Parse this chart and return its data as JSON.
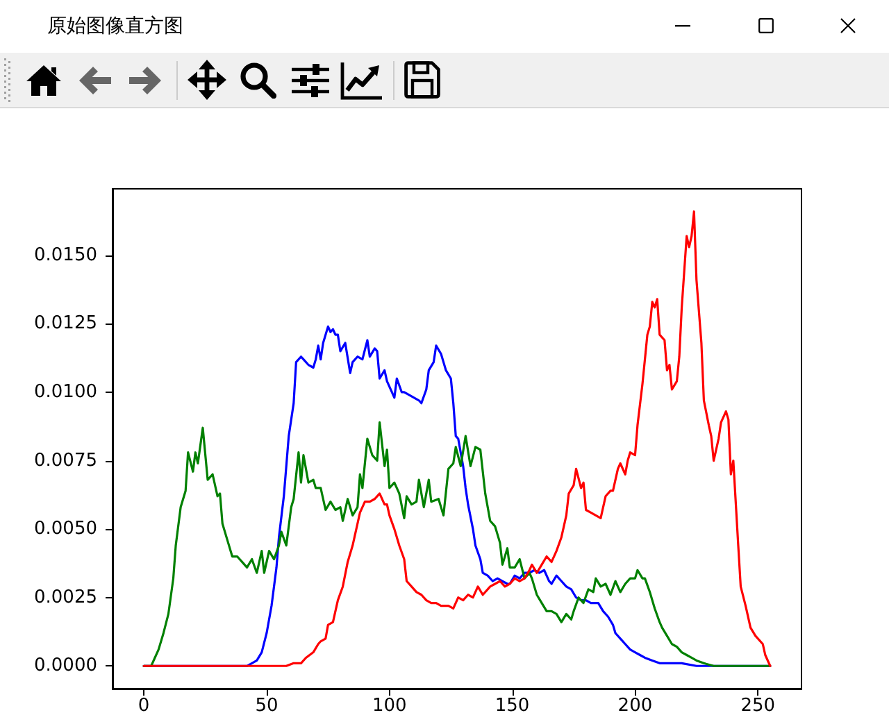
{
  "chart_data": {
    "type": "line",
    "title": "原始图像直方图",
    "xlim": [
      -12.75,
      267.75
    ],
    "ylim": [
      -0.00083,
      0.01743
    ],
    "xticks": [
      0,
      50,
      100,
      150,
      200,
      250
    ],
    "yticks": [
      {
        "value": 0,
        "label": "0.0000"
      },
      {
        "value": 0.0025,
        "label": "0.0025"
      },
      {
        "value": 0.005,
        "label": "0.0050"
      },
      {
        "value": 0.0075,
        "label": "0.0075"
      },
      {
        "value": 0.01,
        "label": "0.0100"
      },
      {
        "value": 0.0125,
        "label": "0.0125"
      },
      {
        "value": 0.015,
        "label": "0.0150"
      }
    ],
    "grid": false,
    "line_style": "solid",
    "series": [
      {
        "color": "#0000ff",
        "x": [
          0,
          42,
          46,
          48,
          50,
          52,
          54,
          55,
          57,
          59,
          61,
          62,
          64,
          65,
          67,
          69,
          70,
          71,
          72,
          73,
          75,
          76,
          77,
          78,
          79,
          80,
          82,
          84,
          85,
          87,
          89,
          91,
          92,
          94,
          95,
          96,
          98,
          99,
          101,
          102,
          103,
          105,
          106,
          108,
          110,
          112,
          113,
          115,
          116,
          118,
          119,
          121,
          122,
          123,
          125,
          126,
          127,
          128,
          130,
          131,
          132,
          134,
          135,
          137,
          138,
          140,
          142,
          144,
          146,
          148,
          149,
          151,
          153,
          155,
          157,
          159,
          161,
          163,
          165,
          166,
          168,
          170,
          172,
          174,
          176,
          178,
          180,
          182,
          185,
          187,
          189,
          191,
          192,
          194,
          196,
          198,
          200,
          202,
          204,
          207,
          210,
          213,
          219,
          225,
          255
        ],
        "values": [
          0,
          0,
          0.0002,
          0.0005,
          0.0012,
          0.0022,
          0.0036,
          0.0047,
          0.0062,
          0.0084,
          0.0096,
          0.0111,
          0.0113,
          0.0112,
          0.011,
          0.0109,
          0.0112,
          0.0117,
          0.0112,
          0.0118,
          0.0124,
          0.0122,
          0.0123,
          0.0121,
          0.0121,
          0.0115,
          0.0118,
          0.0107,
          0.0111,
          0.0113,
          0.0112,
          0.0119,
          0.0113,
          0.0116,
          0.0115,
          0.0105,
          0.0108,
          0.0104,
          0.01,
          0.0098,
          0.0105,
          0.01,
          0.01,
          0.0099,
          0.0098,
          0.0097,
          0.0096,
          0.0101,
          0.0108,
          0.0111,
          0.0117,
          0.0114,
          0.0111,
          0.0108,
          0.0105,
          0.0096,
          0.0084,
          0.0083,
          0.0073,
          0.0065,
          0.0059,
          0.005,
          0.0044,
          0.0039,
          0.0034,
          0.0033,
          0.0031,
          0.0032,
          0.0031,
          0.003,
          0.003,
          0.0033,
          0.0032,
          0.0034,
          0.0034,
          0.0035,
          0.0034,
          0.0035,
          0.0031,
          0.003,
          0.0033,
          0.0031,
          0.0029,
          0.0028,
          0.0025,
          0.0024,
          0.0024,
          0.0023,
          0.0023,
          0.002,
          0.0018,
          0.0015,
          0.0012,
          0.001,
          0.0008,
          0.0006,
          0.0005,
          0.0004,
          0.0003,
          0.0002,
          0.0001,
          0.0001,
          0.0001,
          0,
          0
        ]
      },
      {
        "color": "#008000",
        "x": [
          0,
          3,
          6,
          8,
          10,
          12,
          13,
          15,
          17,
          18,
          20,
          21,
          22,
          24,
          26,
          28,
          30,
          31,
          32,
          34,
          36,
          38,
          40,
          42,
          44,
          46,
          48,
          49,
          51,
          53,
          55,
          56,
          58,
          60,
          61,
          63,
          64,
          65,
          67,
          69,
          70,
          72,
          74,
          76,
          78,
          80,
          81,
          83,
          85,
          87,
          88,
          89,
          91,
          93,
          95,
          96,
          98,
          99,
          100,
          102,
          104,
          106,
          107,
          109,
          111,
          112,
          114,
          116,
          117,
          120,
          122,
          124,
          126,
          127,
          129,
          131,
          133,
          135,
          137,
          139,
          141,
          143,
          145,
          146,
          148,
          149,
          151,
          153,
          155,
          157,
          158,
          160,
          162,
          164,
          166,
          168,
          170,
          172,
          174,
          175,
          177,
          179,
          181,
          183,
          184,
          186,
          188,
          190,
          192,
          194,
          196,
          198,
          200,
          201,
          203,
          204,
          206,
          208,
          210,
          211,
          213,
          215,
          217,
          219,
          221,
          223,
          225,
          228,
          232,
          255
        ],
        "values": [
          0,
          0,
          0.0006,
          0.0012,
          0.0019,
          0.0032,
          0.0044,
          0.0058,
          0.0064,
          0.0078,
          0.0071,
          0.0078,
          0.0074,
          0.0087,
          0.0068,
          0.007,
          0.0062,
          0.0063,
          0.0052,
          0.0046,
          0.004,
          0.004,
          0.0038,
          0.0036,
          0.0039,
          0.0034,
          0.0042,
          0.0034,
          0.0042,
          0.0039,
          0.0044,
          0.0049,
          0.0044,
          0.0058,
          0.0061,
          0.0078,
          0.0067,
          0.0077,
          0.0067,
          0.0068,
          0.0065,
          0.0065,
          0.0057,
          0.006,
          0.0057,
          0.0058,
          0.0053,
          0.0061,
          0.0055,
          0.0058,
          0.007,
          0.0065,
          0.0083,
          0.0077,
          0.0075,
          0.0089,
          0.0073,
          0.0079,
          0.0065,
          0.0067,
          0.0063,
          0.0054,
          0.0062,
          0.0059,
          0.006,
          0.0068,
          0.0058,
          0.0068,
          0.006,
          0.0061,
          0.0055,
          0.0072,
          0.0074,
          0.008,
          0.0073,
          0.0084,
          0.0073,
          0.008,
          0.0079,
          0.0063,
          0.0053,
          0.0051,
          0.0045,
          0.0037,
          0.0043,
          0.0036,
          0.0036,
          0.0039,
          0.0032,
          0.0034,
          0.0032,
          0.0026,
          0.0023,
          0.002,
          0.002,
          0.0019,
          0.0016,
          0.0019,
          0.0017,
          0.002,
          0.0025,
          0.0023,
          0.0028,
          0.0027,
          0.0032,
          0.0029,
          0.003,
          0.0026,
          0.0031,
          0.0027,
          0.003,
          0.0032,
          0.0032,
          0.0035,
          0.0032,
          0.0032,
          0.0027,
          0.0021,
          0.0016,
          0.0014,
          0.0011,
          0.0008,
          0.0007,
          0.0005,
          0.0004,
          0.0003,
          0.0002,
          0.0001,
          0,
          0
        ]
      },
      {
        "color": "#ff0000",
        "x": [
          0,
          58,
          61,
          64,
          66,
          69,
          71,
          72,
          74,
          75,
          77,
          79,
          81,
          83,
          85,
          87,
          88,
          90,
          92,
          94,
          96,
          98,
          99,
          100,
          102,
          104,
          106,
          107,
          109,
          111,
          113,
          115,
          117,
          119,
          121,
          123,
          124,
          126,
          128,
          130,
          132,
          134,
          136,
          138,
          140,
          141,
          143,
          145,
          147,
          149,
          151,
          153,
          155,
          157,
          158,
          160,
          162,
          164,
          166,
          168,
          170,
          172,
          173,
          175,
          176,
          178,
          179,
          180,
          182,
          184,
          186,
          188,
          190,
          191,
          193,
          194,
          196,
          197,
          198,
          200,
          201,
          203,
          205,
          206,
          207,
          208,
          209,
          210,
          212,
          213,
          214,
          215,
          217,
          218,
          219,
          221,
          222,
          223,
          224,
          225,
          227,
          228,
          230,
          231,
          232,
          234,
          235,
          237,
          238,
          239,
          240,
          242,
          243,
          245,
          247,
          249,
          252,
          253,
          255
        ],
        "values": [
          0,
          0,
          0.0001,
          0.0001,
          0.0003,
          0.0005,
          0.0008,
          0.0009,
          0.001,
          0.0015,
          0.0016,
          0.0024,
          0.0029,
          0.0038,
          0.0044,
          0.0052,
          0.0056,
          0.006,
          0.006,
          0.0061,
          0.0063,
          0.0059,
          0.0059,
          0.0055,
          0.005,
          0.0044,
          0.0039,
          0.0031,
          0.0029,
          0.0027,
          0.0026,
          0.0024,
          0.0023,
          0.0023,
          0.0022,
          0.0022,
          0.0022,
          0.0021,
          0.0025,
          0.0024,
          0.0026,
          0.0025,
          0.0029,
          0.0026,
          0.0028,
          0.0029,
          0.003,
          0.0031,
          0.0029,
          0.003,
          0.0032,
          0.0031,
          0.0032,
          0.0035,
          0.0037,
          0.0034,
          0.0037,
          0.004,
          0.0038,
          0.0042,
          0.0047,
          0.0055,
          0.0063,
          0.0066,
          0.0072,
          0.0065,
          0.0067,
          0.0057,
          0.0056,
          0.0055,
          0.0054,
          0.0062,
          0.0064,
          0.0064,
          0.0072,
          0.0074,
          0.007,
          0.0075,
          0.0078,
          0.0077,
          0.0088,
          0.0103,
          0.0121,
          0.0124,
          0.0133,
          0.0131,
          0.0134,
          0.0121,
          0.0119,
          0.0108,
          0.011,
          0.0101,
          0.0104,
          0.0113,
          0.0131,
          0.0157,
          0.0153,
          0.0157,
          0.0166,
          0.0141,
          0.0118,
          0.0097,
          0.0088,
          0.0084,
          0.0075,
          0.0083,
          0.0089,
          0.0093,
          0.009,
          0.007,
          0.0075,
          0.0044,
          0.0029,
          0.0022,
          0.0014,
          0.0011,
          0.0008,
          0.0004,
          0
        ]
      }
    ]
  }
}
